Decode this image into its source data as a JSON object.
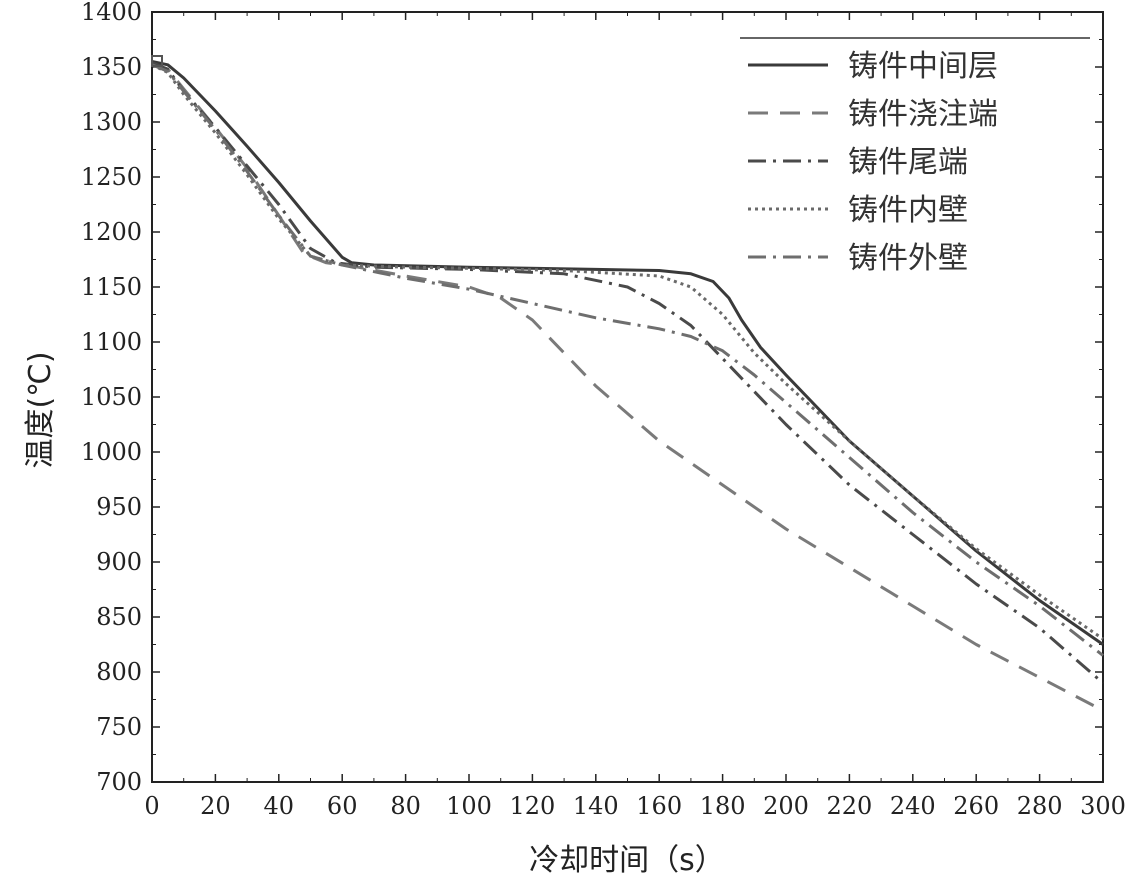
{
  "chart_data": {
    "type": "line",
    "xlabel": "冷却时间（s）",
    "ylabel": "温度(℃)",
    "xlim": [
      0,
      300
    ],
    "ylim": [
      700,
      1400
    ],
    "xticks": [
      0,
      20,
      40,
      60,
      80,
      100,
      120,
      140,
      160,
      180,
      200,
      220,
      240,
      260,
      280,
      300
    ],
    "yticks": [
      700,
      750,
      800,
      850,
      900,
      950,
      1000,
      1050,
      1100,
      1150,
      1200,
      1250,
      1300,
      1350,
      1400
    ],
    "grid": false,
    "legend_position": "top-right",
    "series": [
      {
        "name": "铸件中间层",
        "style": "solid",
        "color": "#3a3a3a",
        "points": [
          [
            0,
            1355
          ],
          [
            5,
            1352
          ],
          [
            10,
            1340
          ],
          [
            20,
            1310
          ],
          [
            30,
            1278
          ],
          [
            40,
            1245
          ],
          [
            50,
            1210
          ],
          [
            60,
            1177
          ],
          [
            63,
            1172
          ],
          [
            70,
            1170
          ],
          [
            100,
            1168
          ],
          [
            140,
            1166
          ],
          [
            160,
            1165
          ],
          [
            170,
            1162
          ],
          [
            177,
            1155
          ],
          [
            182,
            1140
          ],
          [
            186,
            1120
          ],
          [
            192,
            1095
          ],
          [
            200,
            1070
          ],
          [
            220,
            1010
          ],
          [
            240,
            960
          ],
          [
            260,
            910
          ],
          [
            280,
            865
          ],
          [
            300,
            825
          ]
        ]
      },
      {
        "name": "铸件浇注端",
        "style": "dashed",
        "color": "#7a7a7a",
        "points": [
          [
            0,
            1353
          ],
          [
            5,
            1348
          ],
          [
            10,
            1330
          ],
          [
            20,
            1295
          ],
          [
            30,
            1258
          ],
          [
            40,
            1215
          ],
          [
            48,
            1180
          ],
          [
            55,
            1172
          ],
          [
            65,
            1168
          ],
          [
            80,
            1160
          ],
          [
            100,
            1150
          ],
          [
            110,
            1140
          ],
          [
            120,
            1120
          ],
          [
            130,
            1090
          ],
          [
            140,
            1060
          ],
          [
            160,
            1010
          ],
          [
            180,
            970
          ],
          [
            200,
            930
          ],
          [
            220,
            895
          ],
          [
            240,
            860
          ],
          [
            260,
            825
          ],
          [
            280,
            795
          ],
          [
            300,
            765
          ]
        ]
      },
      {
        "name": "铸件尾端",
        "style": "dashdot",
        "color": "#4a4a4a",
        "points": [
          [
            0,
            1354
          ],
          [
            5,
            1348
          ],
          [
            10,
            1328
          ],
          [
            20,
            1295
          ],
          [
            30,
            1260
          ],
          [
            40,
            1225
          ],
          [
            50,
            1185
          ],
          [
            58,
            1172
          ],
          [
            70,
            1168
          ],
          [
            100,
            1166
          ],
          [
            130,
            1162
          ],
          [
            150,
            1150
          ],
          [
            160,
            1135
          ],
          [
            170,
            1115
          ],
          [
            180,
            1085
          ],
          [
            190,
            1055
          ],
          [
            200,
            1025
          ],
          [
            220,
            970
          ],
          [
            240,
            925
          ],
          [
            260,
            880
          ],
          [
            280,
            840
          ],
          [
            300,
            790
          ]
        ]
      },
      {
        "name": "铸件内壁",
        "style": "dotted",
        "color": "#6a6a6a",
        "points": [
          [
            0,
            1352
          ],
          [
            5,
            1345
          ],
          [
            10,
            1325
          ],
          [
            20,
            1290
          ],
          [
            30,
            1252
          ],
          [
            40,
            1212
          ],
          [
            50,
            1178
          ],
          [
            60,
            1170
          ],
          [
            80,
            1168
          ],
          [
            100,
            1167
          ],
          [
            130,
            1165
          ],
          [
            160,
            1160
          ],
          [
            170,
            1150
          ],
          [
            180,
            1125
          ],
          [
            190,
            1090
          ],
          [
            200,
            1062
          ],
          [
            220,
            1010
          ],
          [
            240,
            960
          ],
          [
            260,
            912
          ],
          [
            280,
            870
          ],
          [
            300,
            830
          ]
        ]
      },
      {
        "name": "铸件外壁",
        "style": "dashdot",
        "color": "#6e6e6e",
        "points": [
          [
            0,
            1352
          ],
          [
            5,
            1346
          ],
          [
            10,
            1328
          ],
          [
            20,
            1293
          ],
          [
            30,
            1255
          ],
          [
            40,
            1215
          ],
          [
            50,
            1178
          ],
          [
            60,
            1170
          ],
          [
            80,
            1158
          ],
          [
            100,
            1148
          ],
          [
            120,
            1135
          ],
          [
            140,
            1122
          ],
          [
            160,
            1112
          ],
          [
            170,
            1105
          ],
          [
            180,
            1092
          ],
          [
            190,
            1070
          ],
          [
            200,
            1045
          ],
          [
            220,
            995
          ],
          [
            240,
            945
          ],
          [
            260,
            900
          ],
          [
            280,
            860
          ],
          [
            300,
            815
          ]
        ]
      }
    ]
  }
}
